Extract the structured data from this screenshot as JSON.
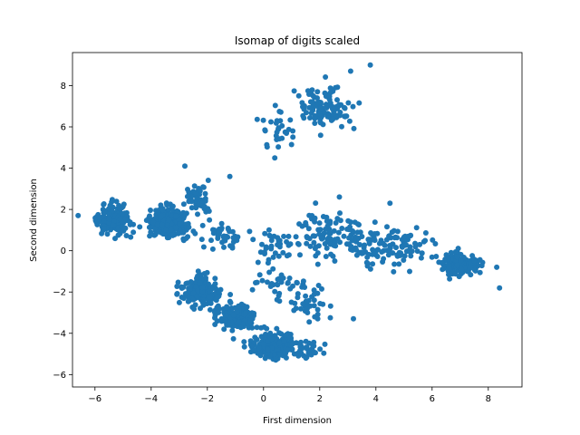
{
  "chart_data": {
    "type": "scatter",
    "title": "Isomap of digits scaled",
    "xlabel": "First dimension",
    "ylabel": "Second dimension",
    "xlim": [
      -6.8,
      9.2
    ],
    "ylim": [
      -6.6,
      9.6
    ],
    "xticks": [
      -6,
      -4,
      -2,
      0,
      2,
      4,
      6,
      8
    ],
    "yticks": [
      -6,
      -4,
      -2,
      0,
      2,
      4,
      6,
      8
    ],
    "grid": false,
    "color": "#1f77b4",
    "clusters": [
      {
        "center": [
          -5.3,
          1.5
        ],
        "spread": [
          0.55,
          0.6
        ],
        "count": 150
      },
      {
        "center": [
          -3.4,
          1.4
        ],
        "spread": [
          0.6,
          0.6
        ],
        "count": 240
      },
      {
        "center": [
          -2.3,
          2.5
        ],
        "spread": [
          0.4,
          0.6
        ],
        "count": 45
      },
      {
        "center": [
          -1.5,
          0.8
        ],
        "spread": [
          0.7,
          0.5
        ],
        "count": 40
      },
      {
        "center": [
          -2.2,
          -2.0
        ],
        "spread": [
          0.55,
          0.6
        ],
        "count": 180
      },
      {
        "center": [
          -1.0,
          -3.2
        ],
        "spread": [
          0.55,
          0.6
        ],
        "count": 160
      },
      {
        "center": [
          0.4,
          -4.6
        ],
        "spread": [
          0.7,
          0.55
        ],
        "count": 220
      },
      {
        "center": [
          1.6,
          -4.9
        ],
        "spread": [
          0.4,
          0.4
        ],
        "count": 30
      },
      {
        "center": [
          2.2,
          6.9
        ],
        "spread": [
          0.8,
          0.8
        ],
        "count": 110
      },
      {
        "center": [
          0.6,
          6.0
        ],
        "spread": [
          0.6,
          0.8
        ],
        "count": 30
      },
      {
        "center": [
          0.5,
          0.3
        ],
        "spread": [
          1.0,
          0.8
        ],
        "count": 45
      },
      {
        "center": [
          2.2,
          0.8
        ],
        "spread": [
          0.7,
          0.9
        ],
        "count": 70
      },
      {
        "center": [
          3.5,
          0.5
        ],
        "spread": [
          0.7,
          0.9
        ],
        "count": 60
      },
      {
        "center": [
          5.0,
          0.2
        ],
        "spread": [
          0.9,
          0.8
        ],
        "count": 80
      },
      {
        "center": [
          7.0,
          -0.7
        ],
        "spread": [
          0.6,
          0.5
        ],
        "count": 130
      },
      {
        "center": [
          1.6,
          -2.5
        ],
        "spread": [
          0.6,
          0.9
        ],
        "count": 40
      },
      {
        "center": [
          0.5,
          -1.6
        ],
        "spread": [
          0.7,
          0.6
        ],
        "count": 30
      }
    ],
    "extra_points": [
      [
        3.8,
        9.0
      ],
      [
        3.1,
        8.7
      ],
      [
        -6.6,
        1.7
      ],
      [
        8.4,
        -1.8
      ],
      [
        8.3,
        -0.8
      ],
      [
        3.2,
        -3.3
      ],
      [
        0.4,
        4.5
      ],
      [
        -1.2,
        3.6
      ],
      [
        -2.8,
        4.1
      ],
      [
        2.7,
        2.6
      ],
      [
        4.5,
        2.3
      ]
    ]
  }
}
